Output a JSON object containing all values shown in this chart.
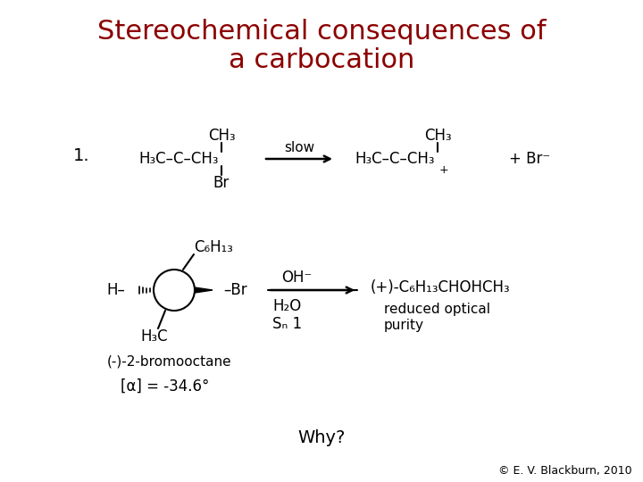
{
  "title_line1": "Stereochemical consequences of",
  "title_line2": "a carbocation",
  "title_color": "#8B0000",
  "title_fontsize": 22,
  "bg_color": "#ffffff",
  "copyright": "© E. V. Blackburn, 2010",
  "why_text": "Why?",
  "text_color": "#000000",
  "body_fontsize": 13
}
